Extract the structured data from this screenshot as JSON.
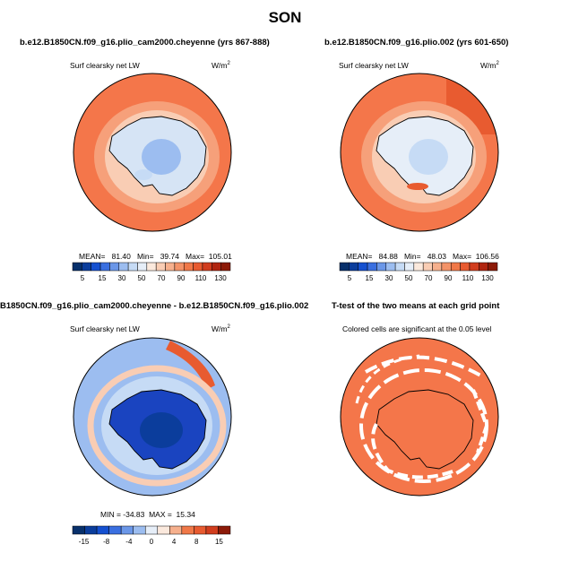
{
  "suptitle": "SON",
  "panels": [
    {
      "title": "b.e12.B1850CN.f09_g16.plio_cam2000.cheyenne (yrs 867-888)",
      "field": "Surf clearsky net LW",
      "units": "W/m",
      "units_sup": "2",
      "stats": "MEAN=   81.40   Min=   39.74   Max=  105.01",
      "colorbar": {
        "labels": [
          "5",
          "15",
          "30",
          "50",
          "70",
          "90",
          "110",
          "130"
        ],
        "colors": [
          "#08306b",
          "#0b3d9c",
          "#1550d0",
          "#3a6fe0",
          "#6b97e8",
          "#9cbdf0",
          "#c6dbf5",
          "#e6eef8",
          "#fbe9dd",
          "#f9cdb4",
          "#f6b08d",
          "#f39368",
          "#f07848",
          "#e85b30",
          "#d13d1e",
          "#b02510",
          "#8c1a08"
        ]
      }
    },
    {
      "title": "b.e12.B1850CN.f09_g16.plio.002 (yrs 601-650)",
      "field": "Surf clearsky net LW",
      "units": "W/m",
      "units_sup": "2",
      "stats": "MEAN=   84.88   Min=   48.03   Max=  106.56",
      "colorbar": {
        "labels": [
          "5",
          "15",
          "30",
          "50",
          "70",
          "90",
          "110",
          "130"
        ],
        "colors": [
          "#08306b",
          "#0b3d9c",
          "#1550d0",
          "#3a6fe0",
          "#6b97e8",
          "#9cbdf0",
          "#c6dbf5",
          "#e6eef8",
          "#fbe9dd",
          "#f9cdb4",
          "#f6b08d",
          "#f39368",
          "#f07848",
          "#e85b30",
          "#d13d1e",
          "#b02510",
          "#8c1a08"
        ]
      }
    },
    {
      "title": "B1850CN.f09_g16.plio_cam2000.cheyenne - b.e12.B1850CN.f09_g16.plio.002",
      "field": "Surf clearsky net LW",
      "units": "W/m",
      "units_sup": "2",
      "stats": "MIN = -34.83  MAX =  15.34",
      "colorbar": {
        "labels": [
          "-15",
          "-8",
          "-4",
          "0",
          "4",
          "8",
          "15"
        ],
        "colors": [
          "#08306b",
          "#0b3d9c",
          "#1550d0",
          "#3a6fe0",
          "#6b97e8",
          "#9cbdf0",
          "#e6eef8",
          "#fbe9dd",
          "#f6b08d",
          "#f07848",
          "#e85b30",
          "#d13d1e",
          "#8c1a08"
        ]
      }
    },
    {
      "title": "T-test of the two means at each grid point",
      "field": "Colored cells are significant at the 0.05 level"
    }
  ],
  "colors": {
    "map_orange": "#f4764a",
    "map_light": "#f9c4a6",
    "land_blue": "#cfe0f5",
    "deep_blue": "#1a44c0"
  }
}
